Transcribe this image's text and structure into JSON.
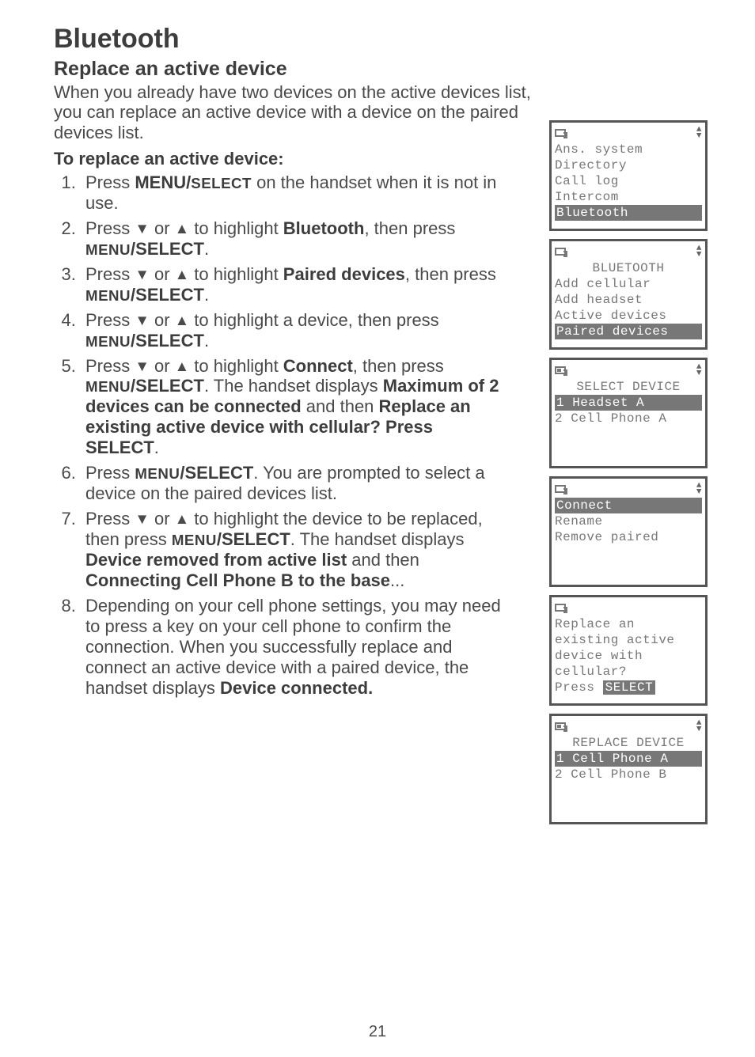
{
  "page_number": "21",
  "title": "Bluetooth",
  "subtitle": "Replace an active device",
  "intro": "When you already have two devices on the active devices list, you can replace an active device with a device on the paired devices list.",
  "subhead": "To replace an active device:",
  "steps": {
    "s1a": "Press ",
    "s1b": "MENU/",
    "s1c": "SELECT",
    "s1d": " on the handset when it is not in use.",
    "s2a": "Press ",
    "s2b": " or ",
    "s2c": " to highlight ",
    "s2d": "Bluetooth",
    "s2e": ", then press ",
    "s2f": "MENU",
    "s2g": "/SELECT",
    "s2h": ".",
    "s3a": "Press ",
    "s3b": " or ",
    "s3c": " to highlight ",
    "s3d": "Paired devices",
    "s3e": ", then press ",
    "s3f": "MENU",
    "s3g": "/SELECT",
    "s3h": ".",
    "s4a": "Press ",
    "s4b": " or ",
    "s4c": " to highlight a device, then press ",
    "s4d": "MENU",
    "s4e": "/SELECT",
    "s4f": ".",
    "s5a": "Press ",
    "s5b": " or ",
    "s5c": " to highlight ",
    "s5d": "Connect",
    "s5e": ", then press ",
    "s5f": "MENU",
    "s5g": "/SELECT",
    "s5h": ". The handset displays ",
    "s5i": "Maximum of 2 devices can be connected",
    "s5j": " and then ",
    "s5k": "Replace an existing active device with cellular? Press SELECT",
    "s5l": ".",
    "s6a": "Press ",
    "s6b": "MENU",
    "s6c": "/SELECT",
    "s6d": ". You are prompted to select a device on the paired devices list.",
    "s7a": "Press ",
    "s7b": " or ",
    "s7c": " to highlight the device to be replaced, then press ",
    "s7d": "MENU",
    "s7e": "/SELECT",
    "s7f": ". The handset displays ",
    "s7g": "Device removed from active list",
    "s7h": " and then ",
    "s7i": "Connecting Cell Phone B to the base",
    "s7j": "...",
    "s8": "Depending on your cell phone settings, you may need to press a key on your cell phone to confirm the connection. When you successfully replace and connect an active device with a paired device, the handset displays ",
    "s8b": "Device connected."
  },
  "triangle_down": "▼",
  "triangle_up": "▲",
  "lcd1": {
    "l1": "Ans. system",
    "l2": "Directory",
    "l3": "Call log",
    "l4": "Intercom",
    "l5": "Bluetooth"
  },
  "lcd2": {
    "title": "BLUETOOTH",
    "l1": "Add cellular",
    "l2": "Add headset",
    "l3": "Active devices",
    "l4": "Paired devices"
  },
  "lcd3": {
    "title": "SELECT DEVICE",
    "l1": "1 Headset A",
    "l2": "2 Cell Phone A"
  },
  "lcd4": {
    "l1": "Connect",
    "l2": "Rename",
    "l3": "Remove paired"
  },
  "lcd5": {
    "l1": "Replace an",
    "l2": "existing active",
    "l3": "device with",
    "l4": "cellular?",
    "l5a": "Press ",
    "l5b": "SELECT"
  },
  "lcd6": {
    "title": "REPLACE DEVICE",
    "l1": "1 Cell Phone A",
    "l2": "2 Cell Phone B"
  }
}
